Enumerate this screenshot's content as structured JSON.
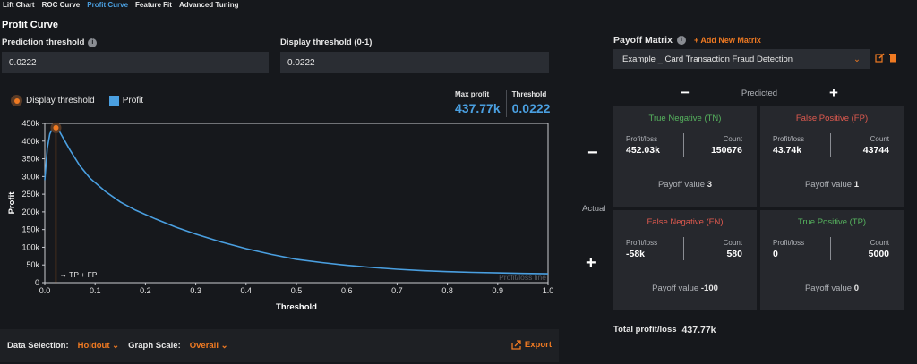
{
  "tabs": [
    "Lift Chart",
    "ROC Curve",
    "Profit Curve",
    "Feature Fit",
    "Advanced Tuning"
  ],
  "active_tab": "Profit Curve",
  "section_title": "Profit Curve",
  "prediction_threshold": {
    "label": "Prediction threshold",
    "value": "0.0222"
  },
  "display_threshold": {
    "label": "Display threshold (0-1)",
    "value": "0.0222"
  },
  "legend": {
    "display_threshold": "Display threshold",
    "profit": "Profit"
  },
  "stats": {
    "max_profit_label": "Max profit",
    "max_profit_value": "437.77k",
    "threshold_label": "Threshold",
    "threshold_value": "0.0222"
  },
  "colors": {
    "accent": "#4a9fe0",
    "orange": "#f07a22",
    "green": "#56b35e",
    "red": "#e05a4f"
  },
  "chart_data": {
    "type": "line",
    "xlabel": "Threshold",
    "ylabel": "Profit",
    "xlim": [
      0,
      1.0
    ],
    "ylim": [
      0,
      450000
    ],
    "x_ticks": [
      "0.0",
      "0.1",
      "0.2",
      "0.3",
      "0.4",
      "0.5",
      "0.6",
      "0.7",
      "0.8",
      "0.9",
      "1.0"
    ],
    "y_ticks": [
      "0",
      "50k",
      "100k",
      "150k",
      "200k",
      "250k",
      "300k",
      "350k",
      "400k",
      "450k"
    ],
    "series": [
      {
        "values_x": [
          0,
          0.005,
          0.01,
          0.015,
          0.0222,
          0.03,
          0.04,
          0.05,
          0.07,
          0.09,
          0.12,
          0.15,
          0.18,
          0.22,
          0.26,
          0.3,
          0.35,
          0.4,
          0.45,
          0.5,
          0.55,
          0.6,
          0.65,
          0.7,
          0.75,
          0.8,
          0.85,
          0.9,
          0.95,
          1.0
        ],
        "values_y": [
          290000,
          380000,
          420000,
          435000,
          437770,
          425000,
          400000,
          375000,
          330000,
          295000,
          258000,
          228000,
          205000,
          180000,
          157000,
          137000,
          115000,
          96000,
          80000,
          66000,
          57000,
          49000,
          43000,
          38000,
          34000,
          31000,
          29000,
          27500,
          26000,
          25000
        ]
      }
    ],
    "marker_threshold": 0.0222,
    "marker_label": "TP + FP",
    "watermark": "Profit/loss line"
  },
  "bottom": {
    "data_selection_label": "Data Selection:",
    "data_selection_value": "Holdout",
    "graph_scale_label": "Graph Scale:",
    "graph_scale_value": "Overall",
    "export_label": "Export"
  },
  "payoff": {
    "title": "Payoff Matrix",
    "add_label": "Add New Matrix",
    "selected": "Example _ Card Transaction Fraud Detection",
    "predicted_label": "Predicted",
    "actual_label": "Actual",
    "cells": {
      "tn": {
        "title": "True Negative (TN)",
        "pl_label": "Profit/loss",
        "pl_value": "452.03k",
        "count_label": "Count",
        "count_value": "150676",
        "payoff_label": "Payoff value",
        "payoff_value": "3"
      },
      "fp": {
        "title": "False Positive (FP)",
        "pl_label": "Profit/loss",
        "pl_value": "43.74k",
        "count_label": "Count",
        "count_value": "43744",
        "payoff_label": "Payoff value",
        "payoff_value": "1"
      },
      "fn": {
        "title": "False Negative (FN)",
        "pl_label": "Profit/loss",
        "pl_value": "-58k",
        "count_label": "Count",
        "count_value": "580",
        "payoff_label": "Payoff value",
        "payoff_value": "-100"
      },
      "tp": {
        "title": "True Positive (TP)",
        "pl_label": "Profit/loss",
        "pl_value": "0",
        "count_label": "Count",
        "count_value": "5000",
        "payoff_label": "Payoff value",
        "payoff_value": "0"
      }
    },
    "total_label": "Total profit/loss",
    "total_value": "437.77k"
  }
}
